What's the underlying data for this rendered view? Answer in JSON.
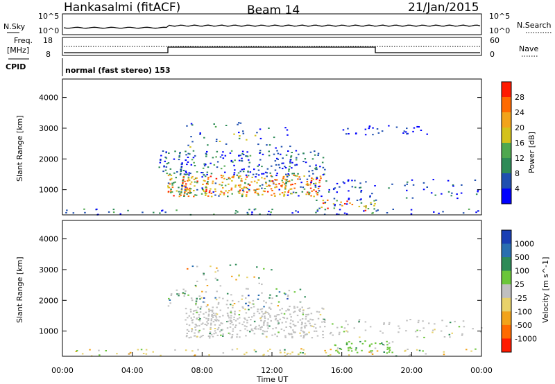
{
  "header": {
    "station": "Hankasalmi (fitACF)",
    "beam": "Beam 14",
    "date": "21/Jan/2015"
  },
  "strip_panels": {
    "nsky_label": "N.Sky",
    "nsearch_label": "N.Search",
    "freq_label_1": "Freq.",
    "freq_label_2": "[MHz]",
    "nave_label": "Nave",
    "cpid_label": "CPID",
    "cpid_value": "normal (fast stereo) 153",
    "nsky_ticks": [
      "10^5",
      "10^0"
    ],
    "nsearch_ticks": [
      "10^5",
      "10^0"
    ],
    "freq_ticks": [
      "18",
      "8"
    ],
    "nave_ticks": [
      "60",
      "0"
    ]
  },
  "colors": {
    "power_scale": [
      "#0000ff",
      "#1f4fb0",
      "#2e8b57",
      "#4fa84f",
      "#d4c21a",
      "#f2a31a",
      "#ff6a00",
      "#ff1a00"
    ],
    "velocity_scale": [
      "#1a3fb4",
      "#2a6fb0",
      "#2e8b57",
      "#6bc63a",
      "#c0c0c0",
      "#e8d26a",
      "#f2a31a",
      "#ff6a00",
      "#ff1a00"
    ]
  },
  "chart_data": [
    {
      "type": "heatmap",
      "title": "Power",
      "xlabel": "",
      "ylabel": "Slant Range [km]",
      "yticks": [
        "1000",
        "2000",
        "3000",
        "4000"
      ],
      "ylim": [
        180,
        4600
      ],
      "xlim_hours": [
        0,
        24
      ],
      "colorbar": {
        "label": "Power [dB]",
        "ticks": [
          "4",
          "8",
          "12",
          "16",
          "20",
          "24",
          "28"
        ]
      }
    },
    {
      "type": "heatmap",
      "title": "Velocity",
      "xlabel": "Time UT",
      "ylabel": "Slant Range [km]",
      "yticks": [
        "1000",
        "2000",
        "3000",
        "4000"
      ],
      "ylim": [
        180,
        4600
      ],
      "xticks": [
        "00:00",
        "04:00",
        "08:00",
        "12:00",
        "16:00",
        "20:00",
        "00:00"
      ],
      "xlim_hours": [
        0,
        24
      ],
      "colorbar": {
        "label": "Velocity [m s^-1]",
        "ticks": [
          "1000",
          "500",
          "100",
          "25",
          "-25",
          "-100",
          "-500",
          "-1000"
        ]
      }
    }
  ]
}
